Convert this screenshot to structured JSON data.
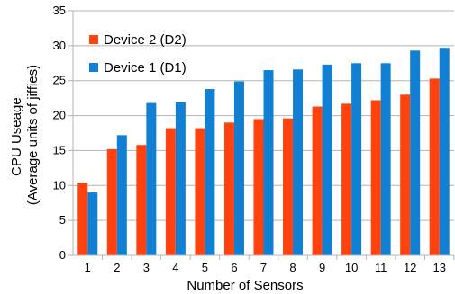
{
  "chart_data": {
    "type": "bar",
    "title": "",
    "xlabel": "Number of Sensors",
    "ylabel_lines": [
      "CPU Useage",
      "(Average units of jiffies)"
    ],
    "ylim": [
      0,
      35
    ],
    "yticks": [
      0,
      5,
      10,
      15,
      20,
      25,
      30,
      35
    ],
    "grid": "horizontal",
    "legend_position": "top-left",
    "categories": [
      "1",
      "2",
      "3",
      "4",
      "5",
      "6",
      "7",
      "8",
      "9",
      "10",
      "11",
      "12",
      "13"
    ],
    "series": [
      {
        "name": "Device 2 (D2)",
        "color": "#ff420e",
        "values": [
          10.4,
          15.2,
          15.8,
          18.2,
          18.2,
          19.0,
          19.5,
          19.6,
          21.3,
          21.7,
          22.2,
          23.0,
          25.3
        ]
      },
      {
        "name": "Device 1 (D1)",
        "color": "#1180d2",
        "values": [
          9.0,
          17.2,
          21.8,
          21.9,
          23.8,
          24.9,
          26.5,
          26.6,
          27.3,
          27.5,
          27.5,
          29.3,
          29.7
        ]
      }
    ]
  }
}
